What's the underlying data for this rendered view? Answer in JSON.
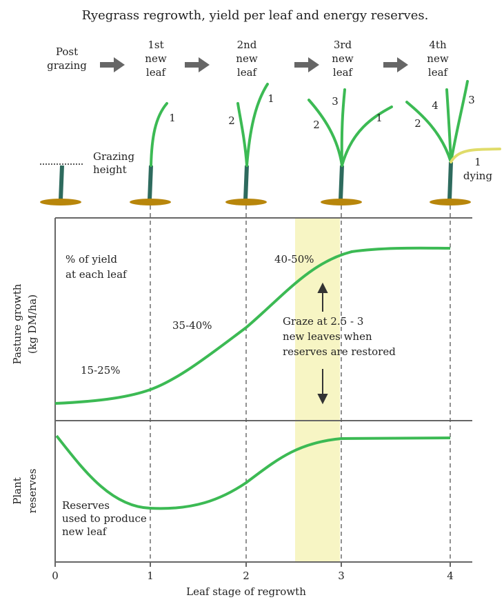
{
  "title": "Ryegrass regrowth, yield per leaf and energy reserves.",
  "stages": [
    [
      "Post",
      "grazing"
    ],
    [
      "1st",
      "new",
      "leaf"
    ],
    [
      "2nd",
      "new",
      "leaf"
    ],
    [
      "3rd",
      "new",
      "leaf"
    ],
    [
      "4th",
      "new",
      "leaf"
    ]
  ],
  "grazing_height": [
    "Grazing",
    "height"
  ],
  "leaf_numbers": {
    "plant1": [
      "1"
    ],
    "plant2": [
      "2",
      "1"
    ],
    "plant3": [
      "3",
      "2",
      "1"
    ],
    "plant4": [
      "4",
      "3",
      "2"
    ]
  },
  "dying_label": [
    "1",
    "dying"
  ],
  "upper_panel": {
    "axis_label": [
      "Pasture growth",
      "(kg DM/ha)"
    ],
    "note": [
      "% of yield",
      "at each leaf"
    ],
    "labels": [
      "15-25%",
      "35-40%",
      "40-50%"
    ],
    "graze_note": [
      "Graze at 2.5 - 3",
      "new leaves when",
      "reserves are restored"
    ]
  },
  "lower_panel": {
    "axis_label": [
      "Plant",
      "reserves"
    ],
    "note": [
      "Reserves",
      "used to produce",
      "new leaf"
    ]
  },
  "x_axis": {
    "label": "Leaf stage of regrowth",
    "ticks": [
      "0",
      "1",
      "2",
      "3",
      "4"
    ]
  }
}
